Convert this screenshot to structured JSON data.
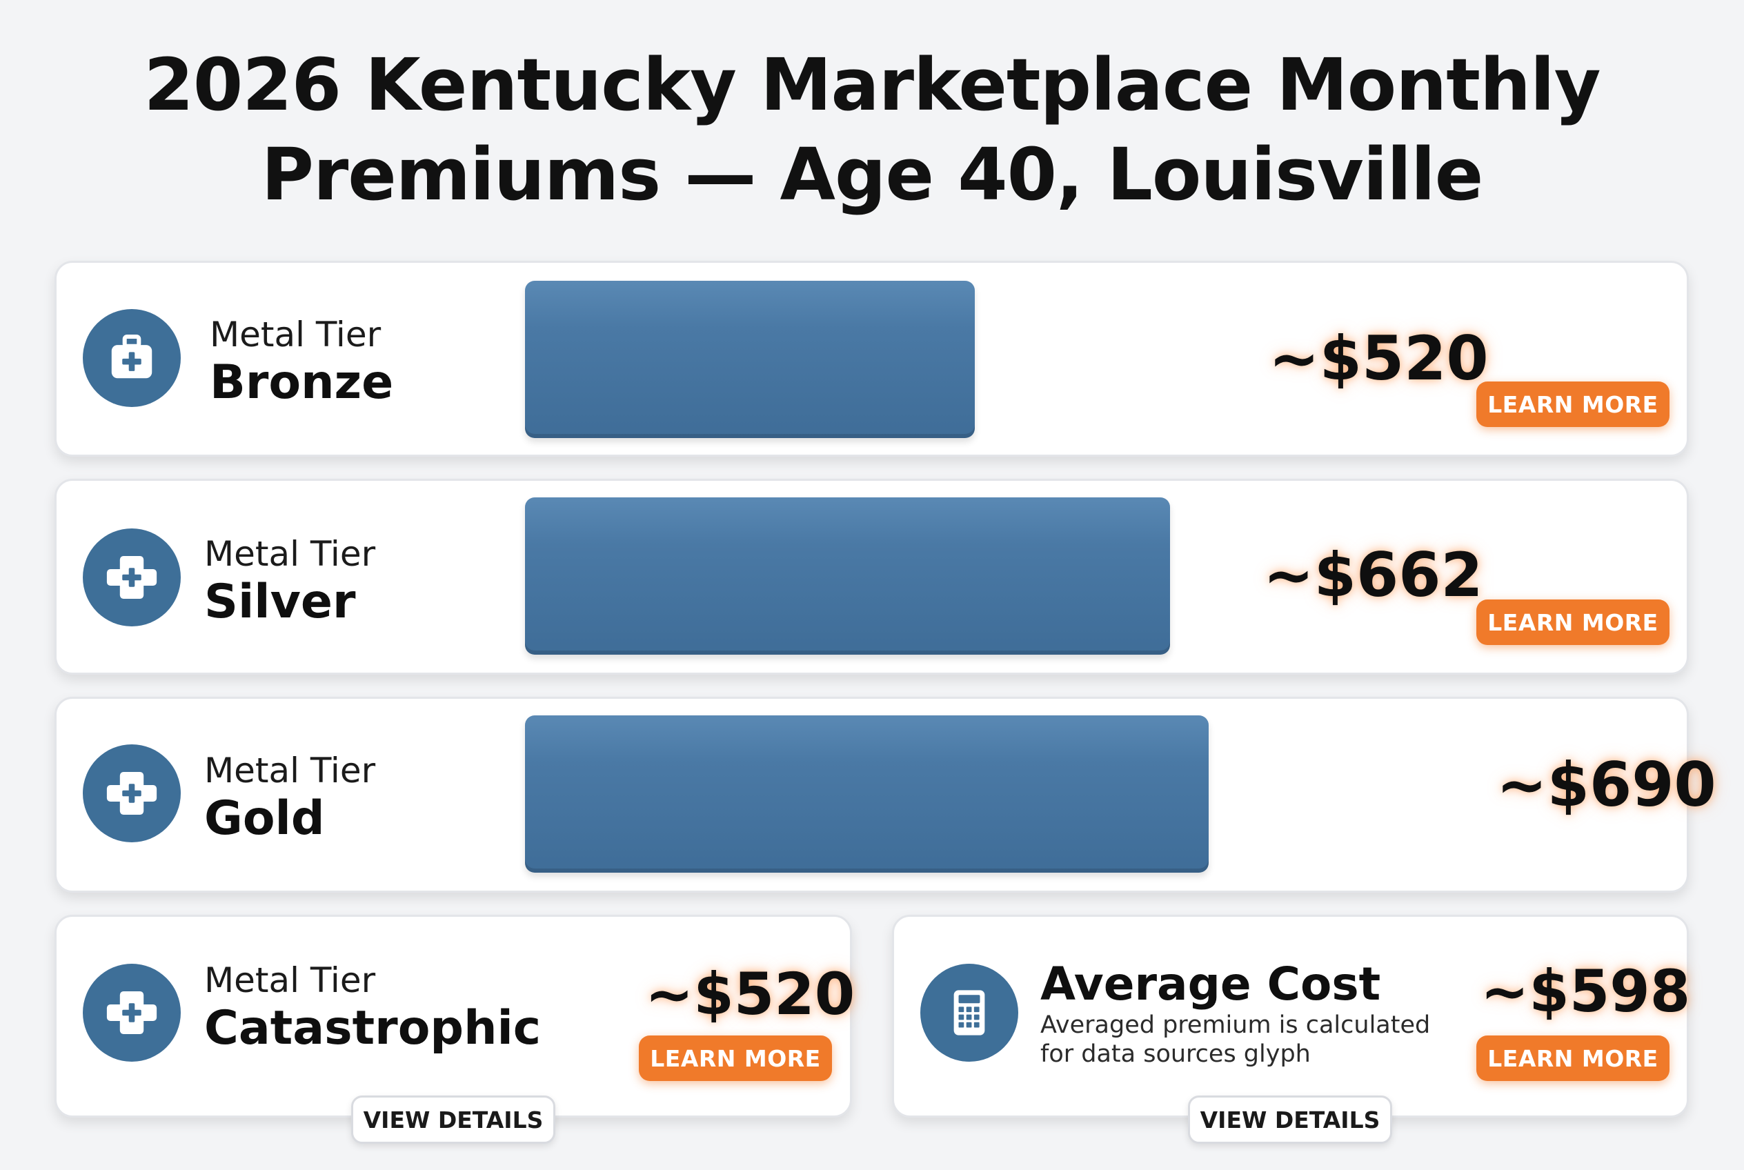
{
  "title_lines": [
    "2026 Kentucky Marketplace Monthly",
    "Premiums — Age 40, Louisville"
  ],
  "colors": {
    "bar": "#4a79a5",
    "icon": "#3e6f98",
    "button_accent": "#f07a2a",
    "value_glow": "#ff8c3c"
  },
  "chart_data": {
    "type": "bar",
    "orientation": "horizontal",
    "title": "2026 Kentucky Marketplace Monthly Premiums — Age 40, Louisville",
    "categories": [
      "Bronze",
      "Silver",
      "Gold",
      "Catastrophic"
    ],
    "values": [
      520,
      662,
      690,
      520
    ],
    "value_labels": [
      "~$520",
      "~$662",
      "~$690",
      "~$520"
    ],
    "category_prefix": "Metal Tier",
    "average": {
      "label": "Average Cost",
      "value": 598,
      "value_label": "~$598"
    }
  },
  "rows": [
    {
      "prefix": "Metal Tier",
      "tier": "Bronze",
      "value": "~$520",
      "button": "LEARN MORE",
      "icon": "medical-kit-icon"
    },
    {
      "prefix": "Metal Tier",
      "tier": "Silver",
      "value": "~$662",
      "button": "LEARN MORE",
      "icon": "medical-cross-icon"
    },
    {
      "prefix": "Metal Tier",
      "tier": "Gold",
      "value": "~$690",
      "icon": "medical-cross-icon"
    }
  ],
  "catastrophic": {
    "prefix": "Metal Tier",
    "tier": "Catastrophic",
    "value": "~$520",
    "button": "LEARN MORE",
    "details": "VIEW DETAILS",
    "icon": "medical-cross-icon"
  },
  "average_card": {
    "title": "Average Cost",
    "desc_line1": "Averaged premium is calculated",
    "desc_line2": "for data sources glyph",
    "value": "~$598",
    "button": "LEARN MORE",
    "details": "VIEW DETAILS",
    "icon": "calculator-icon"
  }
}
